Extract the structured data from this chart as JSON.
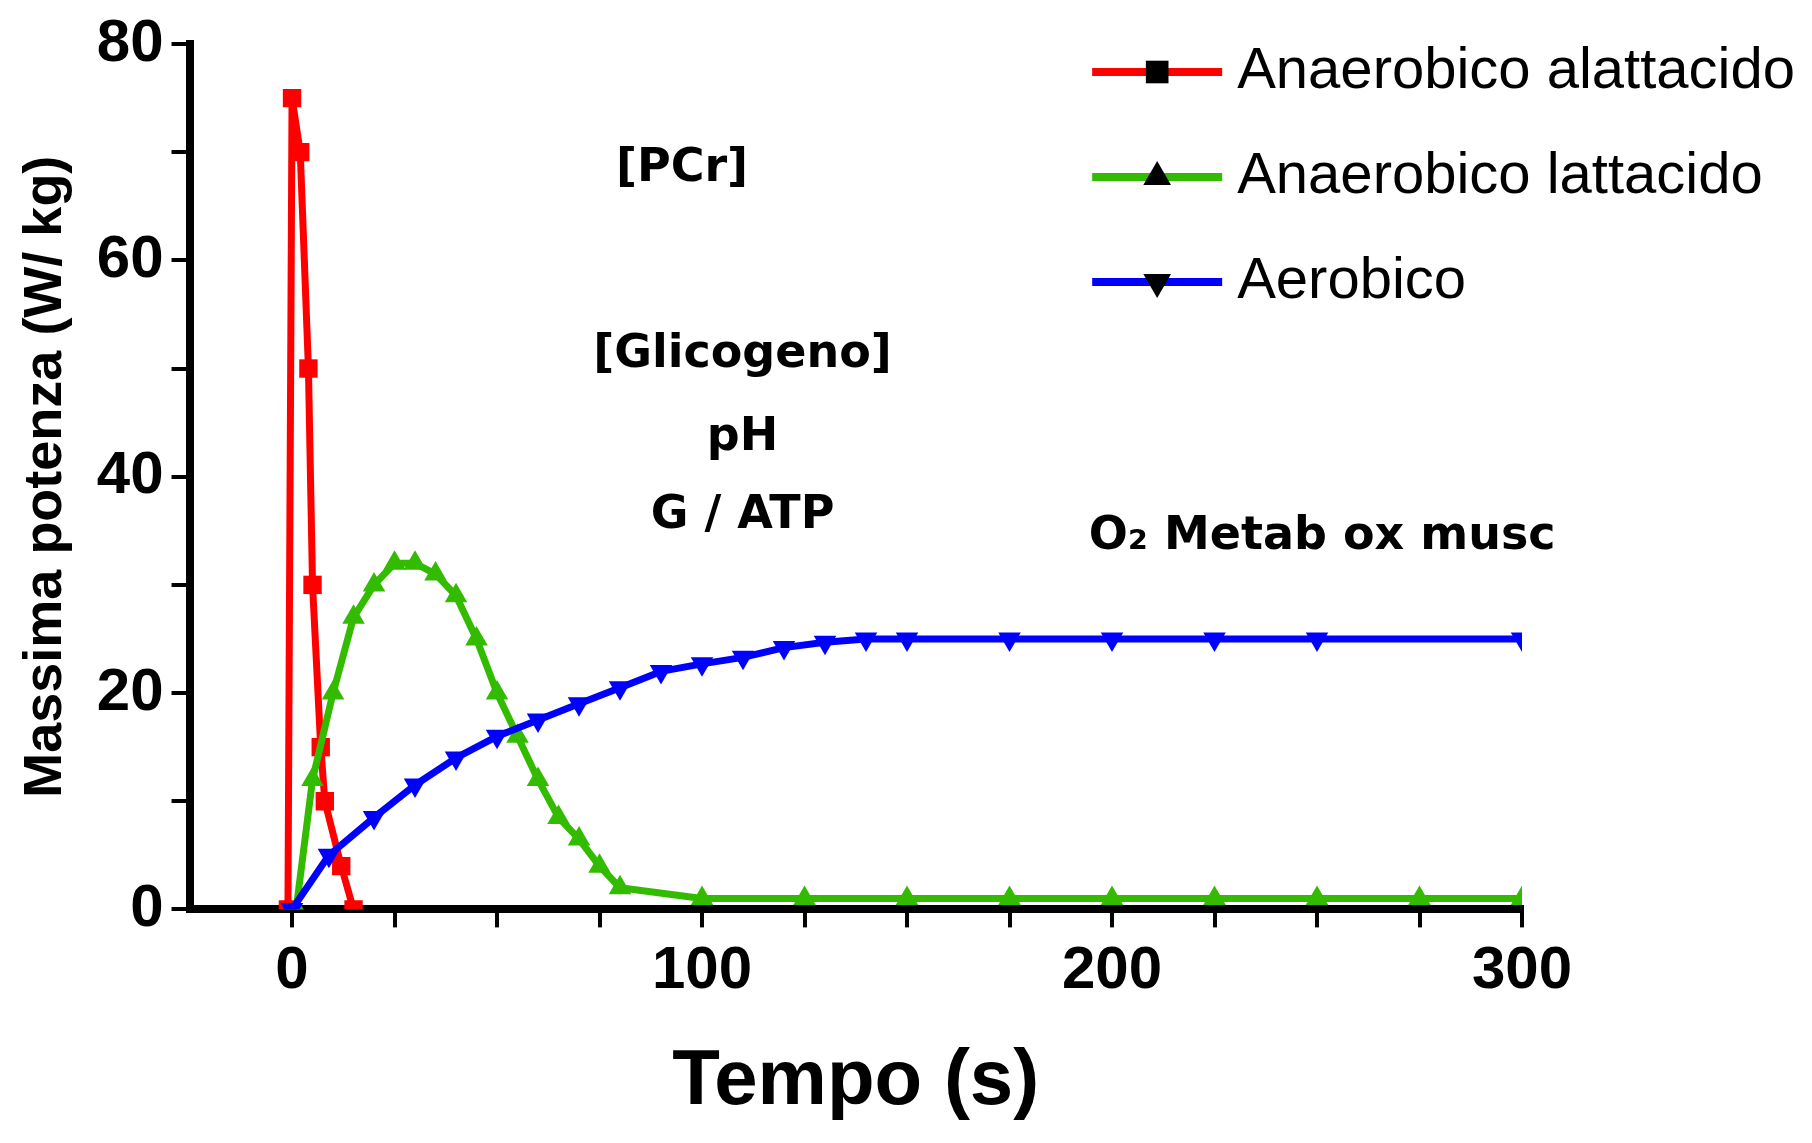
{
  "chart_data": {
    "type": "line",
    "xlabel": "Tempo (s)",
    "ylabel": "Massima potenza (W/ kg)",
    "xlim": [
      -25,
      300
    ],
    "xticks": [
      0,
      {
        "value": 25,
        "label": null
      },
      {
        "value": 50,
        "label": null
      },
      {
        "value": 75,
        "label": null
      },
      100,
      {
        "value": 125,
        "label": null
      },
      {
        "value": 150,
        "label": null
      },
      {
        "value": 175,
        "label": null
      },
      200,
      {
        "value": 225,
        "label": null
      },
      {
        "value": 250,
        "label": null
      },
      {
        "value": 275,
        "label": null
      },
      300
    ],
    "ylim": [
      0,
      80
    ],
    "yticks": [
      0,
      {
        "value": 10,
        "label": null
      },
      20,
      {
        "value": 30,
        "label": null
      },
      40,
      {
        "value": 50,
        "label": null
      },
      60,
      {
        "value": 70,
        "label": null
      },
      80
    ],
    "grid": false,
    "legend": "top right",
    "line_style": "solid",
    "annotations": [
      "[PCr]",
      "[Glicogeno]",
      "pH",
      "G / ATP",
      "O₂ Metab ox musc"
    ],
    "series": [
      {
        "name": "Anaerobico alattacido",
        "color": "#ff0000",
        "marker": "square",
        "x": [
          -1,
          0,
          2,
          4,
          5,
          7,
          8,
          12,
          15
        ],
        "values": [
          0,
          75,
          70,
          50,
          30,
          15,
          10,
          4,
          0
        ]
      },
      {
        "name": "Anaerobico lattacido",
        "color": "#33bb00",
        "marker": "triangle",
        "x": [
          1,
          5,
          10,
          15,
          20,
          25,
          30,
          35,
          40,
          45,
          50,
          55,
          60,
          65,
          70,
          75,
          80,
          100,
          125,
          150,
          175,
          200,
          225,
          250,
          275,
          300
        ],
        "values": [
          0,
          12,
          20,
          27,
          30,
          32,
          32,
          31,
          29,
          25,
          20,
          16,
          12,
          8.5,
          6.5,
          4,
          2,
          1,
          1,
          1,
          1,
          1,
          1,
          1,
          1,
          1
        ]
      },
      {
        "name": "Aerobico",
        "color": "#0000ff",
        "marker": "triangle-down",
        "x": [
          0,
          9,
          20,
          30,
          40,
          50,
          60,
          70,
          80,
          90,
          100,
          110,
          120,
          130,
          140,
          150,
          175,
          200,
          225,
          250,
          300
        ],
        "values": [
          0,
          5,
          8.5,
          11.5,
          14,
          16,
          17.5,
          19,
          20.5,
          22,
          22.7,
          23.3,
          24.2,
          24.7,
          25,
          25,
          25,
          25,
          25,
          25,
          25
        ]
      }
    ]
  }
}
